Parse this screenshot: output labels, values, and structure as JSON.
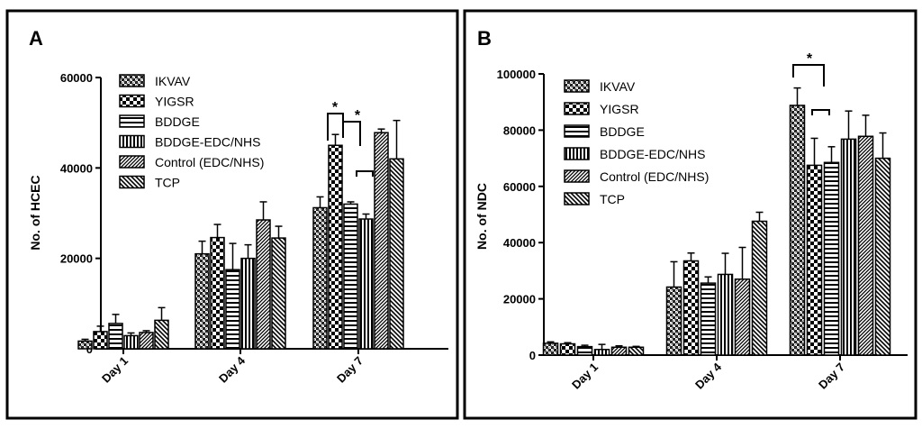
{
  "patterns": [
    "cross",
    "checker",
    "hlines",
    "vlines",
    "diagfine",
    "diag"
  ],
  "chart_data": [
    {
      "type": "bar",
      "panel_label": "A",
      "title": "",
      "xlabel": "",
      "ylabel": "No. of HCEC",
      "ylim": [
        0,
        60000
      ],
      "yticks": [
        "0",
        "20000",
        "40000",
        "60000"
      ],
      "categories": [
        "Day 1",
        "Day 4",
        "Day 7"
      ],
      "series": [
        {
          "name": "IKVAV",
          "values": [
            1700,
            21000,
            31200
          ],
          "errors": [
            400,
            2800,
            2400
          ]
        },
        {
          "name": "YIGSR",
          "values": [
            3800,
            24600,
            45000
          ],
          "errors": [
            1200,
            2900,
            2400
          ]
        },
        {
          "name": "BDDGE",
          "values": [
            5600,
            17500,
            32000
          ],
          "errors": [
            2000,
            5800,
            500
          ]
        },
        {
          "name": "BDDGE-EDC/NHS",
          "values": [
            2900,
            20000,
            28700
          ],
          "errors": [
            600,
            3000,
            1100
          ]
        },
        {
          "name": "Control (EDC/NHS)",
          "values": [
            3600,
            28500,
            47800
          ],
          "errors": [
            400,
            4000,
            800
          ]
        },
        {
          "name": "TCP",
          "values": [
            6300,
            24500,
            42000
          ],
          "errors": [
            2800,
            2600,
            8500
          ]
        }
      ],
      "annotations": [
        {
          "text": "*"
        },
        {
          "text": "*"
        }
      ]
    },
    {
      "type": "bar",
      "panel_label": "B",
      "title": "",
      "xlabel": "",
      "ylabel": "No. of NDC",
      "ylim": [
        0,
        100000
      ],
      "yticks": [
        "0",
        "20000",
        "40000",
        "60000",
        "80000",
        "100000"
      ],
      "categories": [
        "Day 1",
        "Day 4",
        "Day 7"
      ],
      "series": [
        {
          "name": "IKVAV",
          "values": [
            4200,
            24200,
            88800
          ],
          "errors": [
            500,
            9000,
            6200
          ]
        },
        {
          "name": "YIGSR",
          "values": [
            4000,
            33500,
            67500
          ],
          "errors": [
            400,
            2800,
            9600
          ]
        },
        {
          "name": "BDDGE",
          "values": [
            3000,
            25600,
            68500
          ],
          "errors": [
            500,
            2200,
            5600
          ]
        },
        {
          "name": "BDDGE-EDC/NHS",
          "values": [
            2000,
            28700,
            76800
          ],
          "errors": [
            1800,
            7500,
            10000
          ]
        },
        {
          "name": "Control (EDC/NHS)",
          "values": [
            2800,
            27000,
            77800
          ],
          "errors": [
            500,
            11300,
            7500
          ]
        },
        {
          "name": "TCP",
          "values": [
            2800,
            47600,
            70000
          ],
          "errors": [
            300,
            3200,
            9000
          ]
        }
      ],
      "annotations": [
        {
          "text": "*"
        }
      ]
    }
  ]
}
